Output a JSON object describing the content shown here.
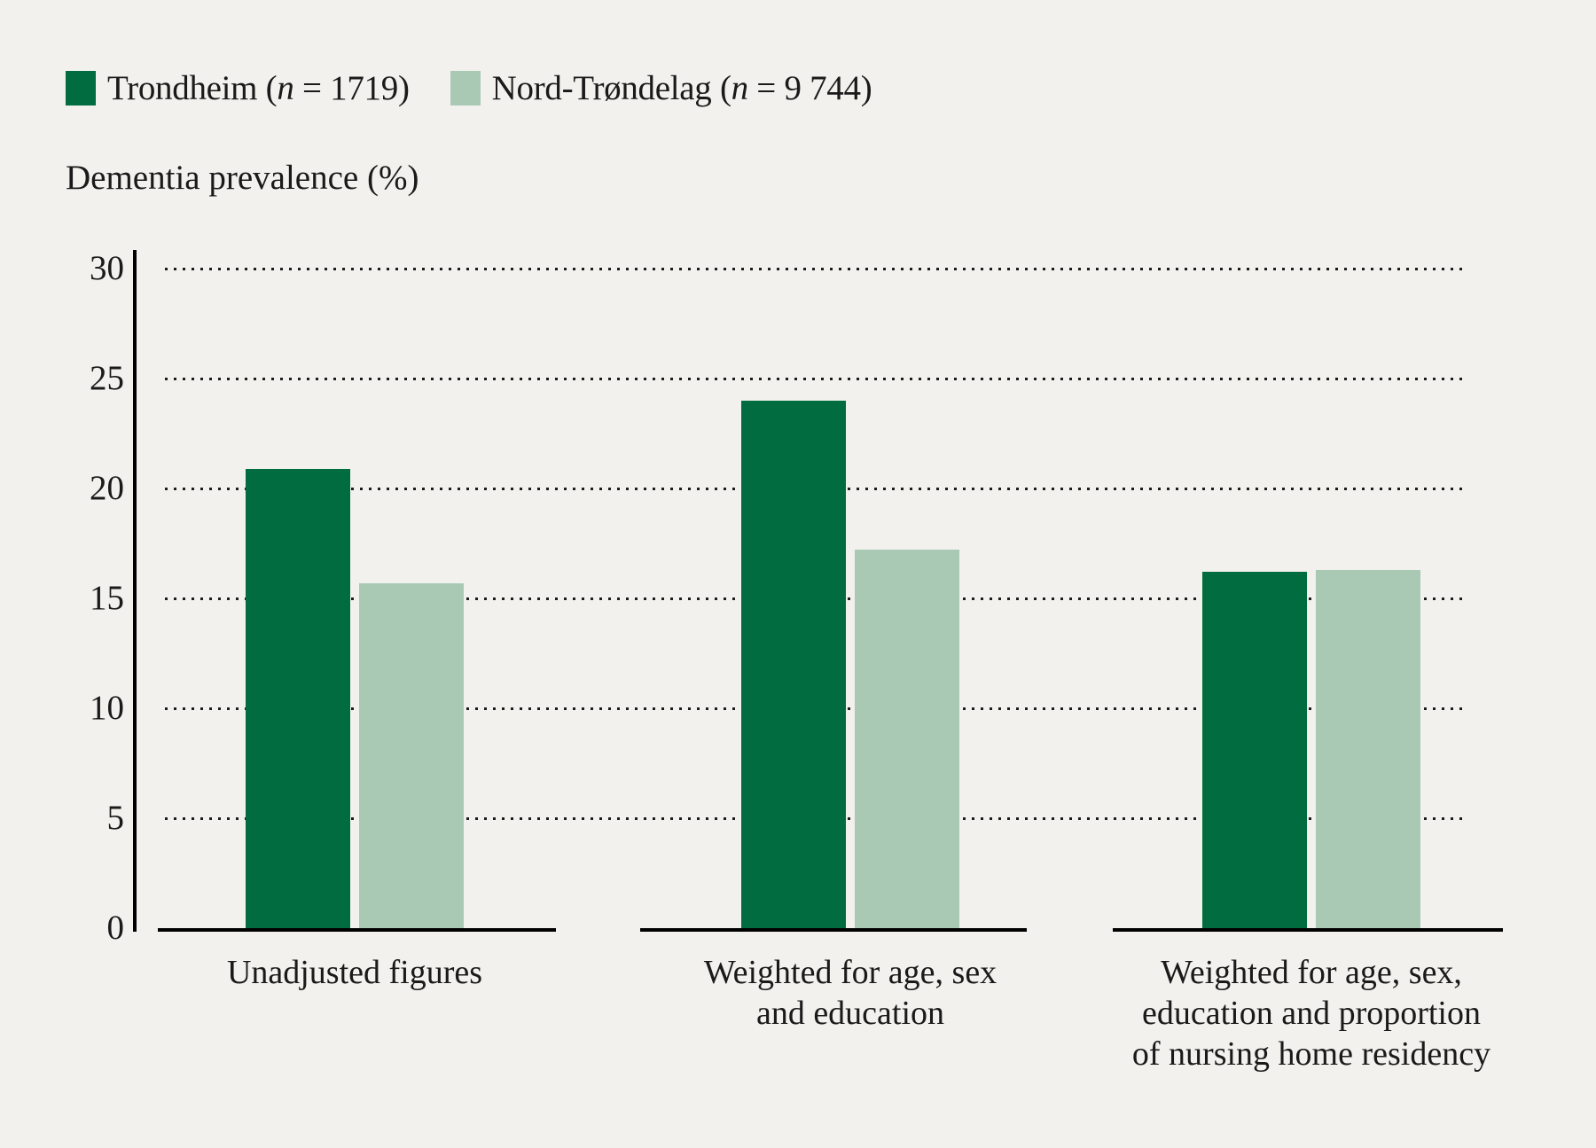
{
  "colors": {
    "background": "#f2f1ed",
    "text": "#1a1a1a",
    "axis": "#000000",
    "trondheim_green": "#006c40",
    "nord_trondelag_green": "#a9c9b4"
  },
  "legend": {
    "items": [
      {
        "pre": "Trondheim (",
        "n": "n",
        "post": " = 1719)"
      },
      {
        "pre": "Nord-Trøndelag (",
        "n": "n",
        "post": " = 9 744)"
      }
    ]
  },
  "chart_data": {
    "type": "bar",
    "title": "",
    "ylabel": "Dementia prevalence (%)",
    "xlabel": "",
    "ylim": [
      0,
      30
    ],
    "yticks": [
      30,
      25,
      20,
      15,
      10,
      5,
      0
    ],
    "grid": "horizontal dotted lines at each ytick, hidden behind bars",
    "legend_position": "top-left",
    "categories": [
      "Unadjusted figures",
      "Weighted for age, sex and education",
      "Weighted for age, sex, education and proportion of nursing home residency"
    ],
    "category_lines": [
      [
        "Unadjusted figures"
      ],
      [
        "Weighted for age, sex",
        "and education"
      ],
      [
        "Weighted for age, sex,",
        "education and proportion",
        "of nursing home residency"
      ]
    ],
    "series": [
      {
        "name": "Trondheim (n = 1719)",
        "color": "#006c40",
        "values": [
          20.9,
          24.0,
          16.2
        ]
      },
      {
        "name": "Nord-Trøndelag (n = 9 744)",
        "color": "#a9c9b4",
        "values": [
          15.7,
          17.2,
          16.3
        ]
      }
    ]
  }
}
